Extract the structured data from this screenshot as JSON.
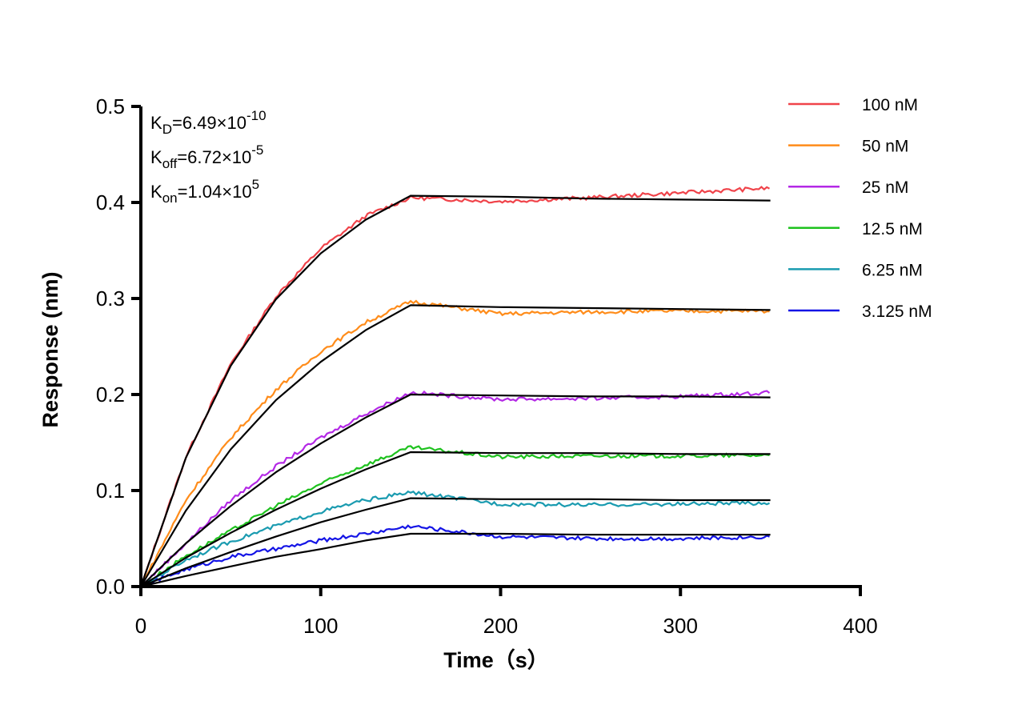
{
  "chart_data": {
    "type": "line",
    "xlabel": "Time（s）",
    "ylabel": "Response (nm)",
    "xlim": [
      0,
      400
    ],
    "ylim": [
      0,
      0.5
    ],
    "xticks": [
      "0",
      "100",
      "200",
      "300",
      "400"
    ],
    "yticks": [
      "0.0",
      "0.1",
      "0.2",
      "0.3",
      "0.4",
      "0.5"
    ],
    "grid": false,
    "legend_position": "top-right",
    "annotations": [
      {
        "base": "K",
        "sub": "D",
        "value": "=6.49×10",
        "exp": "-10"
      },
      {
        "base": "K",
        "sub": "off",
        "value": "=6.72×10",
        "exp": "-5"
      },
      {
        "base": "K",
        "sub": "on",
        "value": "=1.04×10",
        "exp": "5"
      }
    ],
    "x": [
      0,
      25,
      50,
      75,
      100,
      125,
      150,
      200,
      250,
      300,
      350
    ],
    "fit_color": "#000000",
    "series": [
      {
        "name": "100 nM",
        "color": "#f0434a",
        "observed": [
          0,
          0.135,
          0.232,
          0.302,
          0.352,
          0.386,
          0.405,
          0.401,
          0.405,
          0.41,
          0.415
        ],
        "fit": [
          0,
          0.134,
          0.23,
          0.299,
          0.347,
          0.382,
          0.407,
          0.406,
          0.404,
          0.403,
          0.402
        ]
      },
      {
        "name": "50 nM",
        "color": "#ff8c1a",
        "observed": [
          0,
          0.09,
          0.155,
          0.205,
          0.245,
          0.275,
          0.297,
          0.284,
          0.286,
          0.287,
          0.287
        ],
        "fit": [
          0,
          0.079,
          0.143,
          0.194,
          0.234,
          0.267,
          0.293,
          0.291,
          0.29,
          0.289,
          0.288
        ]
      },
      {
        "name": "25 nM",
        "color": "#b429e6",
        "observed": [
          0,
          0.045,
          0.09,
          0.125,
          0.155,
          0.18,
          0.202,
          0.195,
          0.196,
          0.198,
          0.202
        ],
        "fit": [
          0,
          0.045,
          0.084,
          0.119,
          0.149,
          0.176,
          0.2,
          0.199,
          0.198,
          0.198,
          0.197
        ]
      },
      {
        "name": "12.5 nM",
        "color": "#1fc21f",
        "observed": [
          0,
          0.032,
          0.058,
          0.084,
          0.107,
          0.127,
          0.145,
          0.135,
          0.136,
          0.136,
          0.137
        ],
        "fit": [
          0,
          0.03,
          0.056,
          0.08,
          0.102,
          0.122,
          0.14,
          0.139,
          0.139,
          0.138,
          0.138
        ]
      },
      {
        "name": "6.25 nM",
        "color": "#1a9bb0",
        "observed": [
          0,
          0.028,
          0.047,
          0.063,
          0.078,
          0.09,
          0.098,
          0.086,
          0.085,
          0.086,
          0.087
        ],
        "fit": [
          0,
          0.019,
          0.036,
          0.052,
          0.067,
          0.08,
          0.092,
          0.091,
          0.091,
          0.09,
          0.09
        ]
      },
      {
        "name": "3.125 nM",
        "color": "#1414e6",
        "observed": [
          0,
          0.018,
          0.031,
          0.039,
          0.048,
          0.055,
          0.063,
          0.052,
          0.05,
          0.05,
          0.052
        ],
        "fit": [
          0,
          0.011,
          0.021,
          0.031,
          0.039,
          0.048,
          0.055,
          0.055,
          0.054,
          0.054,
          0.054
        ]
      }
    ]
  }
}
